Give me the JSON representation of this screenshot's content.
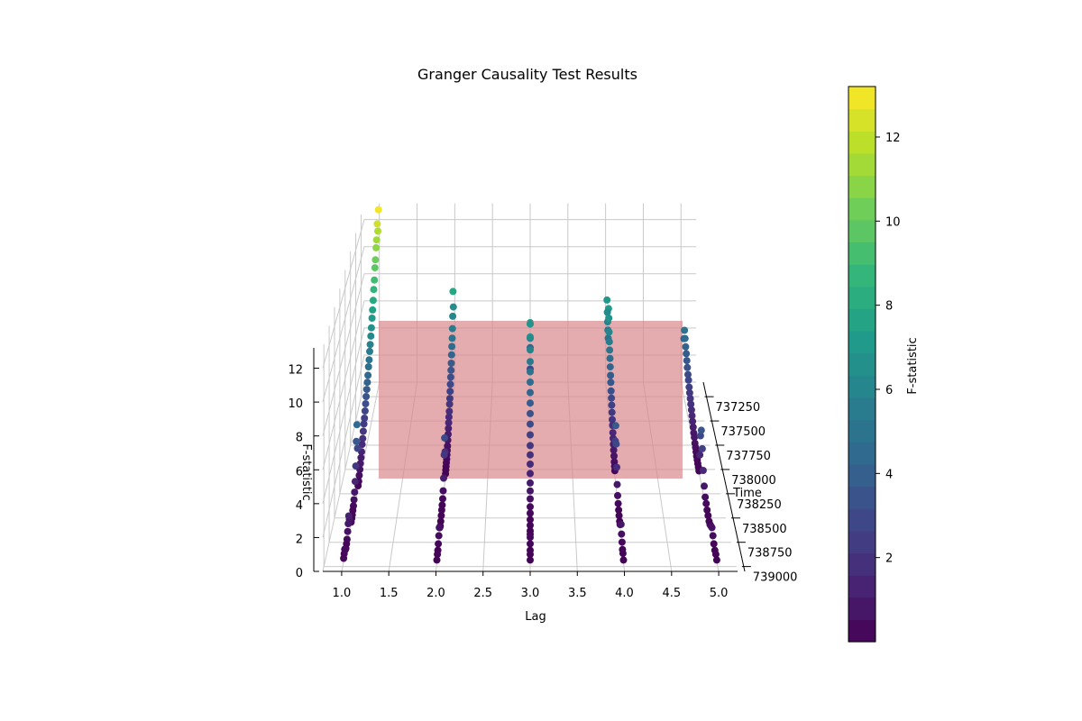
{
  "chart_data": {
    "type": "scatter",
    "projection": "3d",
    "title": "Granger Causality Test Results",
    "xlabel": "Lag",
    "ylabel": "Time",
    "zlabel": "F-statistic",
    "colorbar_label": "F-statistic",
    "colormap": "viridis",
    "xlim": [
      0.8,
      5.2
    ],
    "ylim": [
      737100,
      739050
    ],
    "zlim": [
      0,
      13.2
    ],
    "x_ticks": [
      "1.0",
      "1.5",
      "2.0",
      "2.5",
      "3.0",
      "3.5",
      "4.0",
      "4.5",
      "5.0"
    ],
    "y_ticks": [
      "737250",
      "737500",
      "737750",
      "738000",
      "738250",
      "738500",
      "738750",
      "739000"
    ],
    "z_ticks": [
      "0",
      "2",
      "4",
      "6",
      "8",
      "10",
      "12"
    ],
    "colorbar_ticks": [
      "2",
      "4",
      "6",
      "8",
      "10",
      "12"
    ],
    "colorbar_range": [
      0,
      13.2
    ],
    "grid": true,
    "threshold_plane": {
      "F": 5.8,
      "color": "#d9898b"
    },
    "series": [
      {
        "x": 1,
        "points": [
          [
            737150,
            13.0
          ],
          [
            737180,
            11.6
          ],
          [
            737210,
            12.3
          ],
          [
            737240,
            11.3
          ],
          [
            737270,
            10.9
          ],
          [
            737300,
            10.2
          ],
          [
            737330,
            9.8
          ],
          [
            737360,
            9.1
          ],
          [
            737390,
            8.6
          ],
          [
            737420,
            8.0
          ],
          [
            737450,
            7.5
          ],
          [
            737480,
            7.1
          ],
          [
            737510,
            6.6
          ],
          [
            737540,
            6.2
          ],
          [
            737570,
            5.8
          ],
          [
            737600,
            5.5
          ],
          [
            737630,
            5.1
          ],
          [
            737660,
            4.8
          ],
          [
            737690,
            4.4
          ],
          [
            737720,
            4.1
          ],
          [
            737750,
            3.8
          ],
          [
            737780,
            3.5
          ],
          [
            737810,
            3.2
          ],
          [
            737840,
            2.9
          ],
          [
            737870,
            2.6
          ],
          [
            737900,
            2.4
          ],
          [
            737930,
            2.1
          ],
          [
            737960,
            1.8
          ],
          [
            737990,
            1.6
          ],
          [
            738020,
            1.3
          ],
          [
            738050,
            1.1
          ],
          [
            738080,
            0.9
          ],
          [
            738110,
            0.7
          ],
          [
            738140,
            0.5
          ],
          [
            738170,
            0.3
          ],
          [
            738200,
            0.2
          ],
          [
            738230,
            2.8
          ],
          [
            738260,
            4.5
          ],
          [
            738290,
            3.6
          ],
          [
            738320,
            2.2
          ],
          [
            738350,
            1.4
          ],
          [
            738380,
            0.9
          ],
          [
            738410,
            0.6
          ],
          [
            738440,
            0.4
          ],
          [
            738470,
            0.3
          ],
          [
            738500,
            0.2
          ],
          [
            738530,
            0.15
          ],
          [
            738560,
            0.1
          ],
          [
            738590,
            0.3
          ],
          [
            738620,
            0.5
          ],
          [
            738650,
            0.8
          ],
          [
            738680,
            1.2
          ],
          [
            738710,
            0.9
          ],
          [
            738740,
            0.6
          ],
          [
            738770,
            0.3
          ],
          [
            738800,
            0.2
          ],
          [
            738830,
            0.1
          ],
          [
            738860,
            0.2
          ],
          [
            738890,
            0.4
          ],
          [
            738920,
            0.3
          ],
          [
            738950,
            0.2
          ]
        ]
      },
      {
        "x": 2,
        "points": [
          [
            737250,
            6.5
          ],
          [
            737280,
            7.8
          ],
          [
            737310,
            6.2
          ],
          [
            737340,
            5.5
          ],
          [
            737370,
            5.0
          ],
          [
            737400,
            4.6
          ],
          [
            737430,
            4.2
          ],
          [
            737460,
            3.8
          ],
          [
            737490,
            3.5
          ],
          [
            737520,
            3.2
          ],
          [
            737550,
            2.9
          ],
          [
            737580,
            2.6
          ],
          [
            737610,
            2.3
          ],
          [
            737640,
            2.1
          ],
          [
            737670,
            1.8
          ],
          [
            737700,
            1.6
          ],
          [
            737730,
            1.4
          ],
          [
            737760,
            1.2
          ],
          [
            737790,
            1.0
          ],
          [
            737820,
            0.8
          ],
          [
            737850,
            0.6
          ],
          [
            737880,
            0.5
          ],
          [
            737910,
            0.4
          ],
          [
            737940,
            0.3
          ],
          [
            737970,
            0.25
          ],
          [
            738000,
            0.2
          ],
          [
            738030,
            0.15
          ],
          [
            738060,
            0.1
          ],
          [
            738100,
            1.8
          ],
          [
            738150,
            3.0
          ],
          [
            738200,
            2.2
          ],
          [
            738250,
            1.0
          ],
          [
            738300,
            0.5
          ],
          [
            738350,
            0.3
          ],
          [
            738400,
            0.2
          ],
          [
            738450,
            0.2
          ],
          [
            738500,
            0.15
          ],
          [
            738550,
            0.1
          ],
          [
            738600,
            0.1
          ],
          [
            738650,
            0.3
          ],
          [
            738700,
            0.6
          ],
          [
            738750,
            0.4
          ],
          [
            738800,
            0.2
          ],
          [
            738850,
            0.1
          ],
          [
            738900,
            0.15
          ],
          [
            738950,
            0.1
          ]
        ]
      },
      {
        "x": 3,
        "points": [
          [
            737350,
            4.2
          ],
          [
            737400,
            3.0
          ],
          [
            737450,
            5.5
          ],
          [
            737500,
            6.8
          ],
          [
            737550,
            7.2
          ],
          [
            737600,
            6.5
          ],
          [
            737650,
            5.9
          ],
          [
            737700,
            5.4
          ],
          [
            737750,
            5.0
          ],
          [
            737800,
            4.6
          ],
          [
            737850,
            4.2
          ],
          [
            737900,
            3.8
          ],
          [
            737950,
            3.4
          ],
          [
            738000,
            3.0
          ],
          [
            738050,
            2.6
          ],
          [
            738100,
            2.2
          ],
          [
            738150,
            1.9
          ],
          [
            738200,
            1.6
          ],
          [
            738250,
            1.3
          ],
          [
            738300,
            1.0
          ],
          [
            738350,
            0.8
          ],
          [
            738400,
            0.6
          ],
          [
            738450,
            0.4
          ],
          [
            738500,
            0.3
          ],
          [
            738550,
            0.2
          ],
          [
            738600,
            0.15
          ],
          [
            738650,
            0.1
          ],
          [
            738700,
            0.2
          ],
          [
            738750,
            0.3
          ],
          [
            738800,
            0.2
          ],
          [
            738850,
            0.1
          ],
          [
            738900,
            0.15
          ],
          [
            738950,
            0.1
          ]
        ]
      },
      {
        "x": 4,
        "points": [
          [
            737250,
            7.0
          ],
          [
            737280,
            6.3
          ],
          [
            737310,
            5.8
          ],
          [
            737340,
            5.4
          ],
          [
            737370,
            5.0
          ],
          [
            737400,
            7.3
          ],
          [
            737430,
            6.8
          ],
          [
            737460,
            6.0
          ],
          [
            737490,
            5.5
          ],
          [
            737520,
            5.1
          ],
          [
            737550,
            4.7
          ],
          [
            737580,
            4.3
          ],
          [
            737610,
            3.9
          ],
          [
            737640,
            3.6
          ],
          [
            737670,
            3.2
          ],
          [
            737700,
            2.9
          ],
          [
            737730,
            2.6
          ],
          [
            737760,
            2.3
          ],
          [
            737790,
            2.0
          ],
          [
            737820,
            1.8
          ],
          [
            737850,
            1.5
          ],
          [
            737880,
            1.3
          ],
          [
            737910,
            1.1
          ],
          [
            737940,
            0.9
          ],
          [
            737970,
            0.7
          ],
          [
            738000,
            0.5
          ],
          [
            738030,
            0.4
          ],
          [
            738060,
            0.3
          ],
          [
            738100,
            2.5
          ],
          [
            738150,
            3.8
          ],
          [
            738200,
            2.9
          ],
          [
            738250,
            1.7
          ],
          [
            738300,
            0.9
          ],
          [
            738350,
            0.5
          ],
          [
            738400,
            0.3
          ],
          [
            738450,
            0.2
          ],
          [
            738500,
            0.15
          ],
          [
            738550,
            0.1
          ],
          [
            738600,
            0.2
          ],
          [
            738650,
            0.5
          ],
          [
            738700,
            0.8
          ],
          [
            738750,
            0.5
          ],
          [
            738800,
            0.3
          ],
          [
            738850,
            0.15
          ],
          [
            738900,
            0.2
          ],
          [
            738950,
            0.1
          ]
        ]
      },
      {
        "x": 5,
        "points": [
          [
            737250,
            4.2
          ],
          [
            737280,
            5.0
          ],
          [
            737310,
            4.6
          ],
          [
            737340,
            4.2
          ],
          [
            737370,
            3.9
          ],
          [
            737400,
            3.6
          ],
          [
            737430,
            3.3
          ],
          [
            737460,
            3.0
          ],
          [
            737490,
            2.8
          ],
          [
            737520,
            2.5
          ],
          [
            737550,
            2.3
          ],
          [
            737580,
            2.1
          ],
          [
            737610,
            1.9
          ],
          [
            737640,
            1.7
          ],
          [
            737670,
            1.5
          ],
          [
            737700,
            1.3
          ],
          [
            737730,
            1.1
          ],
          [
            737760,
            0.9
          ],
          [
            737790,
            0.8
          ],
          [
            737820,
            0.6
          ],
          [
            737850,
            0.5
          ],
          [
            737880,
            0.4
          ],
          [
            737910,
            0.3
          ],
          [
            737940,
            0.25
          ],
          [
            737970,
            0.2
          ],
          [
            738000,
            0.15
          ],
          [
            738030,
            0.1
          ],
          [
            738070,
            1.4
          ],
          [
            738110,
            2.9
          ],
          [
            738150,
            3.5
          ],
          [
            738200,
            2.6
          ],
          [
            738250,
            1.5
          ],
          [
            738300,
            0.8
          ],
          [
            738350,
            0.4
          ],
          [
            738400,
            0.3
          ],
          [
            738450,
            0.2
          ],
          [
            738500,
            0.15
          ],
          [
            738550,
            0.1
          ],
          [
            738600,
            0.2
          ],
          [
            738650,
            0.4
          ],
          [
            738700,
            0.6
          ],
          [
            738750,
            0.4
          ],
          [
            738800,
            0.2
          ],
          [
            738850,
            0.1
          ],
          [
            738900,
            0.15
          ],
          [
            738950,
            0.1
          ]
        ]
      }
    ]
  }
}
